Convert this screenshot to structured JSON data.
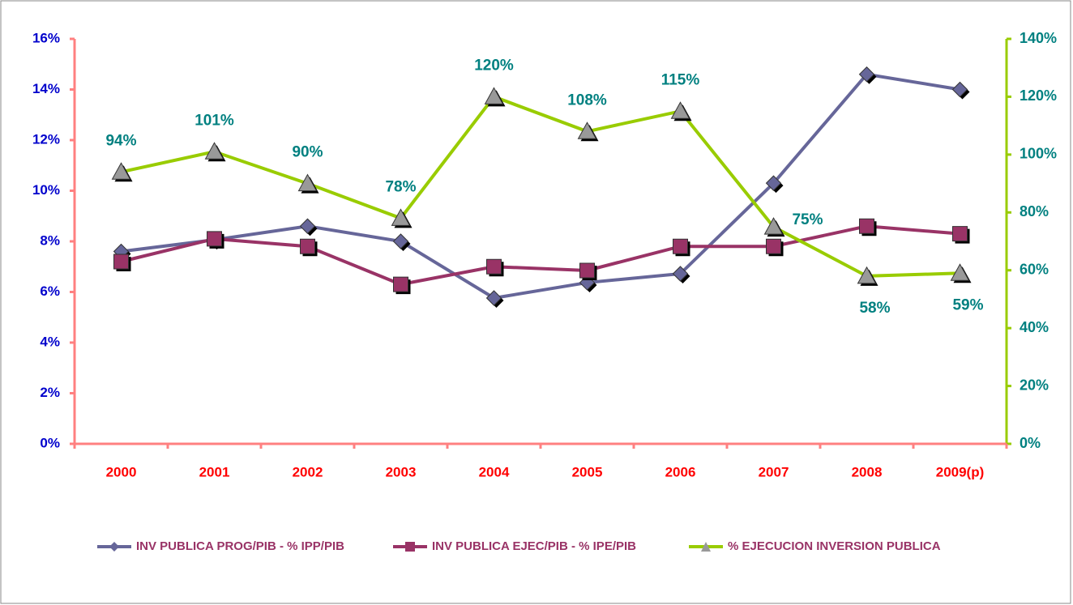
{
  "chart_data": {
    "type": "line",
    "categories": [
      "2000",
      "2001",
      "2002",
      "2003",
      "2004",
      "2005",
      "2006",
      "2007",
      "2008",
      "2009(p)"
    ],
    "series": [
      {
        "name": "INV PUBLICA PROG/PIB -  % IPP/PIB",
        "color": "#666699",
        "marker": "diamond",
        "values": [
          7.6,
          8.06,
          8.6,
          8.0,
          5.76,
          6.37,
          6.72,
          10.3,
          14.6,
          14.0
        ]
      },
      {
        "name": "INV PUBLICA EJEC/PIB -  % IPE/PIB",
        "color": "#993366",
        "marker": "square",
        "values": [
          7.2,
          8.1,
          7.8,
          6.3,
          7.0,
          6.85,
          7.8,
          7.8,
          8.6,
          8.3
        ]
      },
      {
        "name": "% EJECUCION INVERSION PUBLICA",
        "color": "#99cc00",
        "marker": "triangle",
        "axis": "y2",
        "values": [
          94,
          101,
          90,
          78,
          120,
          108,
          115,
          75,
          58,
          59
        ],
        "value_labels": [
          "94%",
          "101%",
          "90%",
          "78%",
          "120%",
          "108%",
          "115%",
          "75%",
          "58%",
          "59%"
        ]
      }
    ],
    "ylim": [
      0,
      16
    ],
    "yticks": [
      {
        "value": 0,
        "label": "0%"
      },
      {
        "value": 2,
        "label": "2%"
      },
      {
        "value": 4,
        "label": "4%"
      },
      {
        "value": 6,
        "label": "6%"
      },
      {
        "value": 8,
        "label": "8%"
      },
      {
        "value": 10,
        "label": "10%"
      },
      {
        "value": 12,
        "label": "12%"
      },
      {
        "value": 14,
        "label": "14%"
      },
      {
        "value": 16,
        "label": "16%"
      }
    ],
    "y2lim": [
      0,
      140
    ],
    "y2ticks": [
      {
        "value": 0,
        "label": "0%"
      },
      {
        "value": 20,
        "label": "20%"
      },
      {
        "value": 40,
        "label": "40%"
      },
      {
        "value": 60,
        "label": "60%"
      },
      {
        "value": 80,
        "label": "80%"
      },
      {
        "value": 100,
        "label": "100%"
      },
      {
        "value": 120,
        "label": "120%"
      },
      {
        "value": 140,
        "label": "140%"
      }
    ],
    "legend": "bottom"
  }
}
